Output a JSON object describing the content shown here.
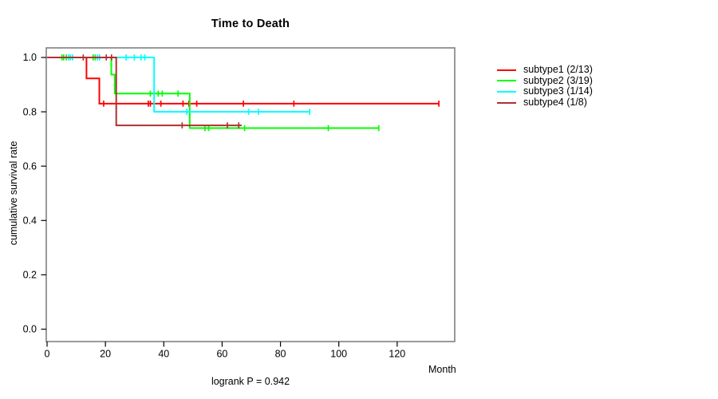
{
  "chart_data": {
    "type": "line",
    "subtype": "kaplan-meier-step",
    "title": "Time to Death",
    "xlabel": "Month",
    "ylabel": "cumulative survival rate",
    "annotation": "logrank P = 0.942",
    "xlim": [
      0,
      140
    ],
    "ylim": [
      0.0,
      1.0
    ],
    "xticks": [
      0,
      20,
      40,
      60,
      80,
      100,
      120
    ],
    "yticks": [
      0.0,
      0.2,
      0.4,
      0.6,
      0.8,
      1.0
    ],
    "grid": false,
    "legend_position": "right-outside",
    "frame_color": "#808080",
    "axis_color": "#000000",
    "series": [
      {
        "name": "subtype1 (2/13)",
        "color": "#ff0000",
        "steps": [
          [
            0,
            1.0
          ],
          [
            13.5,
            0.923
          ],
          [
            17.9,
            0.83
          ],
          [
            134.3,
            0.83
          ]
        ],
        "censors": [
          [
            19.4,
            0.83
          ],
          [
            34.7,
            0.83
          ],
          [
            35.4,
            0.83
          ],
          [
            39.0,
            0.83
          ],
          [
            46.6,
            0.83
          ],
          [
            48.6,
            0.83
          ],
          [
            51.3,
            0.83
          ],
          [
            67.3,
            0.83
          ],
          [
            84.6,
            0.83
          ],
          [
            134.3,
            0.83
          ]
        ]
      },
      {
        "name": "subtype2 (3/19)",
        "color": "#00ff00",
        "steps": [
          [
            0,
            1.0
          ],
          [
            22.0,
            0.937
          ],
          [
            23.2,
            0.867
          ],
          [
            48.9,
            0.74
          ],
          [
            113.7,
            0.74
          ]
        ],
        "censors": [
          [
            5.1,
            1.0
          ],
          [
            5.7,
            1.0
          ],
          [
            6.6,
            1.0
          ],
          [
            15.8,
            1.0
          ],
          [
            16.5,
            1.0
          ],
          [
            35.4,
            0.867
          ],
          [
            38.1,
            0.867
          ],
          [
            39.5,
            0.867
          ],
          [
            44.9,
            0.867
          ],
          [
            54.1,
            0.74
          ],
          [
            55.4,
            0.74
          ],
          [
            67.7,
            0.74
          ],
          [
            96.4,
            0.74
          ],
          [
            113.7,
            0.74
          ]
        ]
      },
      {
        "name": "subtype3 (1/14)",
        "color": "#00ffff",
        "steps": [
          [
            0,
            1.0
          ],
          [
            36.7,
            0.8
          ],
          [
            90.0,
            0.8
          ]
        ],
        "censors": [
          [
            7.4,
            1.0
          ],
          [
            8.0,
            1.0
          ],
          [
            8.7,
            1.0
          ],
          [
            17.3,
            1.0
          ],
          [
            18.0,
            1.0
          ],
          [
            27.1,
            1.0
          ],
          [
            29.9,
            1.0
          ],
          [
            32.2,
            1.0
          ],
          [
            33.5,
            1.0
          ],
          [
            47.9,
            0.8
          ],
          [
            69.1,
            0.8
          ],
          [
            72.5,
            0.8
          ],
          [
            90.0,
            0.8
          ]
        ]
      },
      {
        "name": "subtype4 (1/8)",
        "color": "#b03030",
        "steps": [
          [
            0,
            1.0
          ],
          [
            23.7,
            0.75
          ],
          [
            66.7,
            0.75
          ]
        ],
        "censors": [
          [
            12.4,
            1.0
          ],
          [
            20.3,
            1.0
          ],
          [
            22.1,
            1.0
          ],
          [
            46.3,
            0.75
          ],
          [
            61.8,
            0.75
          ],
          [
            65.7,
            0.75
          ]
        ]
      }
    ]
  }
}
